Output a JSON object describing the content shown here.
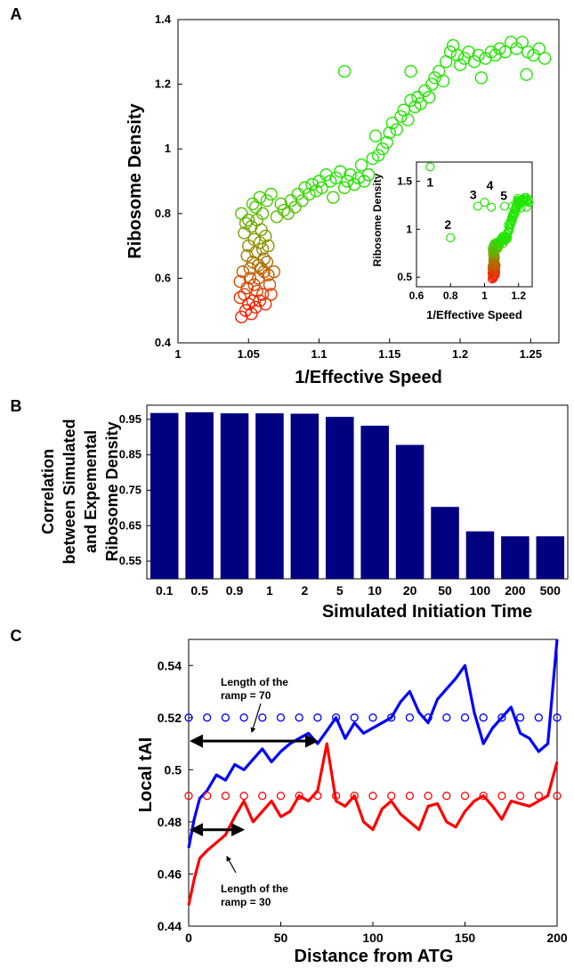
{
  "panel_labels": [
    "A",
    "B",
    "C"
  ],
  "chart_data": [
    {
      "id": "A",
      "type": "scatter",
      "xlabel": "1/Effective Speed",
      "ylabel": "Ribosome Density",
      "xlim": [
        1,
        1.27
      ],
      "ylim": [
        0.4,
        1.4
      ],
      "xticks": [
        1,
        1.05,
        1.1,
        1.15,
        1.2,
        1.25
      ],
      "yticks": [
        0.4,
        0.6,
        0.8,
        1,
        1.2,
        1.4
      ],
      "marker": "open-circle",
      "color_scale": {
        "low": "#ff1a00",
        "mid": "#8f8f00",
        "high": "#22e600",
        "low_value": 0.5,
        "high_value": 0.9
      },
      "points": [
        [
          1.045,
          0.48
        ],
        [
          1.048,
          0.5
        ],
        [
          1.05,
          0.52
        ],
        [
          1.052,
          0.49
        ],
        [
          1.047,
          0.55
        ],
        [
          1.053,
          0.53
        ],
        [
          1.055,
          0.51
        ],
        [
          1.049,
          0.57
        ],
        [
          1.044,
          0.54
        ],
        [
          1.056,
          0.56
        ],
        [
          1.058,
          0.53
        ],
        [
          1.051,
          0.6
        ],
        [
          1.046,
          0.62
        ],
        [
          1.054,
          0.58
        ],
        [
          1.06,
          0.55
        ],
        [
          1.062,
          0.52
        ],
        [
          1.057,
          0.6
        ],
        [
          1.059,
          0.63
        ],
        [
          1.053,
          0.65
        ],
        [
          1.049,
          0.67
        ],
        [
          1.055,
          0.68
        ],
        [
          1.061,
          0.62
        ],
        [
          1.063,
          0.65
        ],
        [
          1.065,
          0.58
        ],
        [
          1.05,
          0.7
        ],
        [
          1.054,
          0.72
        ],
        [
          1.058,
          0.71
        ],
        [
          1.06,
          0.69
        ],
        [
          1.062,
          0.73
        ],
        [
          1.047,
          0.74
        ],
        [
          1.052,
          0.76
        ],
        [
          1.056,
          0.78
        ],
        [
          1.059,
          0.75
        ],
        [
          1.064,
          0.7
        ],
        [
          1.045,
          0.8
        ],
        [
          1.05,
          0.78
        ],
        [
          1.055,
          0.82
        ],
        [
          1.06,
          0.8
        ],
        [
          1.063,
          0.84
        ],
        [
          1.066,
          0.86
        ],
        [
          1.058,
          0.85
        ],
        [
          1.053,
          0.83
        ],
        [
          1.048,
          0.77
        ],
        [
          1.061,
          0.66
        ],
        [
          1.057,
          0.64
        ],
        [
          1.064,
          0.61
        ],
        [
          1.044,
          0.59
        ],
        [
          1.066,
          0.55
        ],
        [
          1.068,
          0.62
        ],
        [
          1.051,
          0.63
        ],
        [
          1.07,
          0.79
        ],
        [
          1.075,
          0.81
        ],
        [
          1.073,
          0.83
        ],
        [
          1.078,
          0.8
        ],
        [
          1.08,
          0.84
        ],
        [
          1.083,
          0.82
        ],
        [
          1.085,
          0.86
        ],
        [
          1.088,
          0.84
        ],
        [
          1.09,
          0.88
        ],
        [
          1.093,
          0.86
        ],
        [
          1.095,
          0.89
        ],
        [
          1.098,
          0.87
        ],
        [
          1.1,
          0.9
        ],
        [
          1.102,
          0.88
        ],
        [
          1.105,
          0.92
        ],
        [
          1.108,
          0.9
        ],
        [
          1.11,
          0.85
        ],
        [
          1.112,
          0.91
        ],
        [
          1.115,
          0.93
        ],
        [
          1.118,
          0.88
        ],
        [
          1.12,
          0.9
        ],
        [
          1.122,
          0.92
        ],
        [
          1.125,
          0.89
        ],
        [
          1.128,
          0.91
        ],
        [
          1.13,
          0.95
        ],
        [
          1.132,
          0.9
        ],
        [
          1.135,
          0.92
        ],
        [
          1.138,
          0.97
        ],
        [
          1.14,
          1.04
        ],
        [
          1.142,
          0.98
        ],
        [
          1.145,
          1.0
        ],
        [
          1.148,
          1.02
        ],
        [
          1.15,
          1.05
        ],
        [
          1.152,
          1.08
        ],
        [
          1.155,
          1.06
        ],
        [
          1.158,
          1.1
        ],
        [
          1.16,
          1.12
        ],
        [
          1.163,
          1.09
        ],
        [
          1.165,
          1.15
        ],
        [
          1.168,
          1.13
        ],
        [
          1.17,
          1.16
        ],
        [
          1.172,
          1.14
        ],
        [
          1.175,
          1.18
        ],
        [
          1.178,
          1.16
        ],
        [
          1.18,
          1.2
        ],
        [
          1.182,
          1.22
        ],
        [
          1.185,
          1.24
        ],
        [
          1.188,
          1.21
        ],
        [
          1.19,
          1.27
        ],
        [
          1.193,
          1.3
        ],
        [
          1.195,
          1.32
        ],
        [
          1.198,
          1.29
        ],
        [
          1.2,
          1.26
        ],
        [
          1.203,
          1.28
        ],
        [
          1.206,
          1.3
        ],
        [
          1.21,
          1.27
        ],
        [
          1.213,
          1.29
        ],
        [
          1.218,
          1.28
        ],
        [
          1.222,
          1.3
        ],
        [
          1.225,
          1.29
        ],
        [
          1.228,
          1.31
        ],
        [
          1.232,
          1.3
        ],
        [
          1.236,
          1.33
        ],
        [
          1.24,
          1.31
        ],
        [
          1.244,
          1.33
        ],
        [
          1.248,
          1.3
        ],
        [
          1.252,
          1.29
        ],
        [
          1.256,
          1.31
        ],
        [
          1.26,
          1.28
        ],
        [
          1.247,
          1.23
        ],
        [
          1.118,
          1.24
        ],
        [
          1.165,
          1.24
        ],
        [
          1.215,
          1.22
        ]
      ],
      "inset": {
        "xlabel": "1/Effective Speed",
        "ylabel": "Ribosome Density",
        "xlim": [
          0.6,
          1.28
        ],
        "ylim": [
          0.4,
          1.7
        ],
        "xticks": [
          0.6,
          0.8,
          1,
          1.2
        ],
        "yticks": [
          0.5,
          1,
          1.5
        ],
        "labeled_points": [
          {
            "label": "1",
            "x": 0.68,
            "y": 1.65
          },
          {
            "label": "2",
            "x": 0.8,
            "y": 0.91
          },
          {
            "label": "3",
            "x": 0.96,
            "y": 1.24
          },
          {
            "label": "4",
            "x": 1.0,
            "y": 1.28
          },
          {
            "label": "5",
            "x": 1.04,
            "y": 1.23
          }
        ]
      }
    },
    {
      "id": "B",
      "type": "bar",
      "xlabel": "Simulated Initiation Time",
      "ylabel": [
        "Correlation",
        "between Simulated",
        "and Expemental",
        "Ribosome Density"
      ],
      "categories": [
        "0.1",
        "0.5",
        "0.9",
        "1",
        "2",
        "5",
        "10",
        "20",
        "50",
        "100",
        "200",
        "500"
      ],
      "values": [
        0.968,
        0.97,
        0.967,
        0.967,
        0.966,
        0.957,
        0.932,
        0.878,
        0.703,
        0.634,
        0.62,
        0.62
      ],
      "ylim": [
        0.5,
        0.99
      ],
      "yticks": [
        0.55,
        0.65,
        0.75,
        0.85,
        0.95
      ],
      "bar_color": "#000080"
    },
    {
      "id": "C",
      "type": "line",
      "xlabel": "Distance from ATG",
      "ylabel": "Local tAI",
      "xlim": [
        0,
        200
      ],
      "ylim": [
        0.44,
        0.55
      ],
      "xticks": [
        0,
        50,
        100,
        150,
        200
      ],
      "yticks": [
        0.44,
        0.46,
        0.48,
        0.5,
        0.52,
        0.54
      ],
      "series": [
        {
          "color": "#0000ff",
          "level": 0.52,
          "x": [
            0,
            3,
            6,
            10,
            15,
            20,
            25,
            30,
            35,
            40,
            45,
            50,
            55,
            60,
            65,
            70,
            75,
            80,
            85,
            90,
            95,
            100,
            105,
            110,
            115,
            120,
            125,
            130,
            135,
            140,
            145,
            150,
            155,
            160,
            165,
            170,
            175,
            180,
            185,
            190,
            195,
            200
          ],
          "y": [
            0.47,
            0.481,
            0.489,
            0.492,
            0.498,
            0.496,
            0.502,
            0.5,
            0.504,
            0.508,
            0.503,
            0.507,
            0.51,
            0.512,
            0.514,
            0.51,
            0.515,
            0.52,
            0.512,
            0.518,
            0.514,
            0.516,
            0.518,
            0.52,
            0.526,
            0.53,
            0.522,
            0.518,
            0.527,
            0.531,
            0.535,
            0.54,
            0.522,
            0.51,
            0.516,
            0.52,
            0.524,
            0.514,
            0.512,
            0.507,
            0.51,
            0.55
          ]
        },
        {
          "color": "#ff0000",
          "level": 0.49,
          "x": [
            0,
            3,
            6,
            10,
            15,
            20,
            25,
            30,
            35,
            40,
            45,
            50,
            55,
            60,
            65,
            70,
            75,
            80,
            85,
            90,
            95,
            100,
            105,
            110,
            115,
            120,
            125,
            130,
            135,
            140,
            145,
            150,
            155,
            160,
            165,
            170,
            175,
            180,
            185,
            190,
            195,
            200
          ],
          "y": [
            0.448,
            0.458,
            0.466,
            0.469,
            0.472,
            0.475,
            0.482,
            0.488,
            0.48,
            0.484,
            0.488,
            0.482,
            0.484,
            0.49,
            0.488,
            0.492,
            0.51,
            0.488,
            0.486,
            0.49,
            0.48,
            0.477,
            0.485,
            0.488,
            0.483,
            0.48,
            0.477,
            0.486,
            0.487,
            0.48,
            0.478,
            0.484,
            0.488,
            0.49,
            0.486,
            0.481,
            0.488,
            0.487,
            0.486,
            0.488,
            0.49,
            0.503
          ]
        }
      ],
      "annotations": [
        {
          "text": [
            "Length of the",
            "ramp = 70"
          ],
          "range": [
            0,
            70
          ],
          "level": 0.511
        },
        {
          "text": [
            "Length of the",
            "ramp = 30"
          ],
          "range": [
            0,
            30
          ],
          "level": 0.477
        }
      ]
    }
  ]
}
